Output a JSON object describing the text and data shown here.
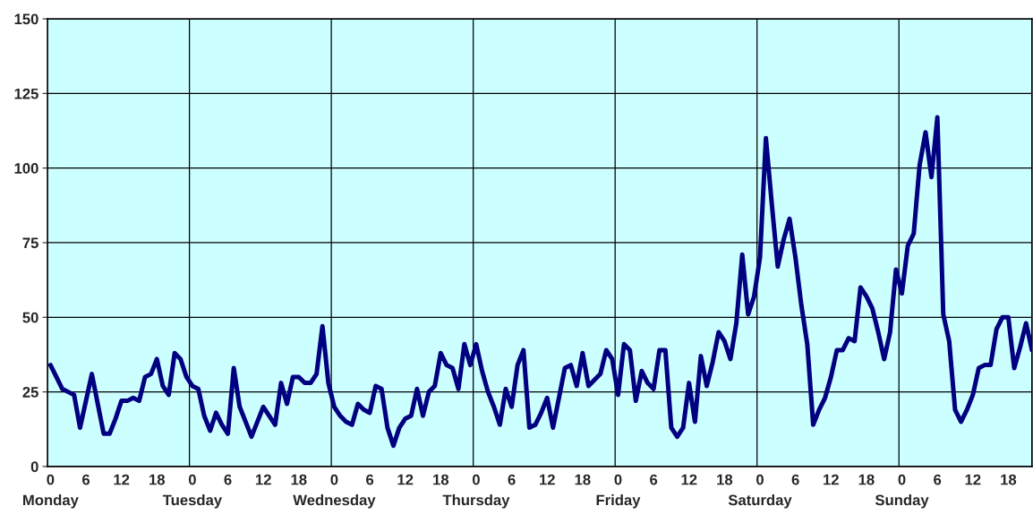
{
  "chart_data": {
    "type": "line",
    "categories": [
      "0\nMonday",
      null,
      null,
      null,
      null,
      null,
      "6",
      null,
      null,
      null,
      null,
      null,
      "12",
      null,
      null,
      null,
      null,
      null,
      "18",
      null,
      null,
      null,
      null,
      null,
      "0\nTuesday",
      null,
      null,
      null,
      null,
      null,
      "6",
      null,
      null,
      null,
      null,
      null,
      "12",
      null,
      null,
      null,
      null,
      null,
      "18",
      null,
      null,
      null,
      null,
      null,
      "0\nWednesday",
      null,
      null,
      null,
      null,
      null,
      "6",
      null,
      null,
      null,
      null,
      null,
      "12",
      null,
      null,
      null,
      null,
      null,
      "18",
      null,
      null,
      null,
      null,
      null,
      "0\nThursday",
      null,
      null,
      null,
      null,
      null,
      "6",
      null,
      null,
      null,
      null,
      null,
      "12",
      null,
      null,
      null,
      null,
      null,
      "18",
      null,
      null,
      null,
      null,
      null,
      "0\nFriday",
      null,
      null,
      null,
      null,
      null,
      "6",
      null,
      null,
      null,
      null,
      null,
      "12",
      null,
      null,
      null,
      null,
      null,
      "18",
      null,
      null,
      null,
      null,
      null,
      "0\nSaturday",
      null,
      null,
      null,
      null,
      null,
      "6",
      null,
      null,
      null,
      null,
      null,
      "12",
      null,
      null,
      null,
      null,
      null,
      "18",
      null,
      null,
      null,
      null,
      null,
      "0\nSunday",
      null,
      null,
      null,
      null,
      null,
      "6",
      null,
      null,
      null,
      null,
      null,
      "12",
      null,
      null,
      null,
      null,
      null,
      "18",
      null,
      null,
      null,
      null
    ],
    "series": [
      {
        "color": "#000080",
        "values": [
          34,
          30,
          26,
          25,
          24,
          13,
          22,
          31,
          21,
          11,
          11,
          16,
          22,
          22,
          23,
          22,
          30,
          31,
          36,
          27,
          24,
          38,
          36,
          30,
          27,
          26,
          17,
          12,
          18,
          14,
          11,
          33,
          20,
          15,
          10,
          15,
          20,
          17,
          14,
          28,
          21,
          30,
          30,
          28,
          28,
          31,
          47,
          28,
          20,
          17,
          15,
          14,
          21,
          19,
          18,
          27,
          26,
          13,
          7,
          13,
          16,
          17,
          26,
          17,
          25,
          27,
          38,
          34,
          33,
          26,
          41,
          34,
          41,
          32,
          25,
          20,
          14,
          26,
          20,
          34,
          39,
          13,
          14,
          18,
          23,
          13,
          23,
          33,
          34,
          27,
          38,
          27,
          29,
          31,
          39,
          36,
          24,
          41,
          39,
          22,
          32,
          28,
          26,
          39,
          39,
          13,
          10,
          13,
          28,
          15,
          37,
          27,
          35,
          45,
          42,
          36,
          48,
          71,
          51,
          57,
          70,
          110,
          88,
          67,
          76,
          83,
          70,
          54,
          41,
          14,
          19,
          23,
          30,
          39,
          39,
          43,
          42,
          60,
          57,
          53,
          45,
          36,
          45,
          66,
          58,
          74,
          78,
          101,
          112,
          97,
          117,
          51,
          42,
          19,
          15,
          19,
          24,
          33,
          34,
          34,
          46,
          50,
          50,
          33,
          40,
          48,
          39
        ]
      }
    ],
    "ylim": [
      0,
      150
    ],
    "yticks": [
      0,
      25,
      50,
      75,
      100,
      125,
      150
    ],
    "grid": "y",
    "marker": "none",
    "line_style": "solid"
  }
}
